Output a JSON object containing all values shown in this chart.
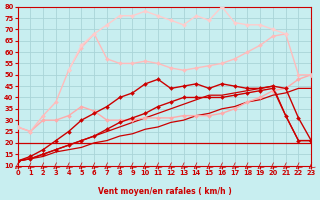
{
  "xlabel": "Vent moyen/en rafales ( km/h )",
  "bg_color": "#c8eef0",
  "grid_color": "#aad4d8",
  "xlim": [
    0,
    23
  ],
  "ylim": [
    10,
    80
  ],
  "yticks": [
    10,
    15,
    20,
    25,
    30,
    35,
    40,
    45,
    50,
    55,
    60,
    65,
    70,
    75,
    80
  ],
  "xticks": [
    0,
    1,
    2,
    3,
    4,
    5,
    6,
    7,
    8,
    9,
    10,
    11,
    12,
    13,
    14,
    15,
    16,
    17,
    18,
    19,
    20,
    21,
    22,
    23
  ],
  "series": [
    {
      "x": [
        0,
        23
      ],
      "y": [
        20,
        20
      ],
      "color": "#cc0000",
      "lw": 0.9,
      "marker": null,
      "ms": 0,
      "zorder": 2
    },
    {
      "x": [
        0,
        1,
        2,
        3,
        4,
        5,
        6,
        7,
        8,
        9,
        10,
        11,
        12,
        13,
        14,
        15,
        16,
        17,
        18,
        19,
        20,
        21,
        22,
        23
      ],
      "y": [
        12,
        13,
        14,
        16,
        17,
        18,
        20,
        21,
        23,
        24,
        26,
        27,
        29,
        30,
        32,
        33,
        35,
        36,
        38,
        39,
        41,
        42,
        44,
        44
      ],
      "color": "#cc0000",
      "lw": 0.9,
      "marker": null,
      "ms": 0,
      "zorder": 3
    },
    {
      "x": [
        0,
        1,
        2,
        3,
        4,
        5,
        6,
        7,
        8,
        9,
        10,
        11,
        12,
        13,
        14,
        15,
        16,
        17,
        18,
        19,
        20,
        21,
        22,
        23
      ],
      "y": [
        12,
        13,
        15,
        17,
        19,
        21,
        23,
        25,
        27,
        29,
        31,
        33,
        35,
        37,
        39,
        41,
        41,
        42,
        43,
        44,
        45,
        32,
        21,
        21
      ],
      "color": "#cc0000",
      "lw": 0.9,
      "marker": null,
      "ms": 0,
      "zorder": 3
    },
    {
      "x": [
        0,
        1,
        2,
        3,
        4,
        5,
        6,
        7,
        8,
        9,
        10,
        11,
        12,
        13,
        14,
        15,
        16,
        17,
        18,
        19,
        20,
        21,
        22,
        23
      ],
      "y": [
        12,
        13,
        15,
        17,
        19,
        21,
        23,
        26,
        29,
        31,
        33,
        36,
        38,
        40,
        40,
        40,
        40,
        41,
        42,
        43,
        44,
        32,
        21,
        21
      ],
      "color": "#cc0000",
      "lw": 1.0,
      "marker": "D",
      "ms": 2.0,
      "zorder": 5
    },
    {
      "x": [
        0,
        1,
        2,
        3,
        4,
        5,
        6,
        7,
        8,
        9,
        10,
        11,
        12,
        13,
        14,
        15,
        16,
        17,
        18,
        19,
        20,
        21,
        22,
        23
      ],
      "y": [
        12,
        14,
        17,
        21,
        25,
        30,
        33,
        36,
        40,
        42,
        46,
        48,
        44,
        45,
        46,
        44,
        46,
        45,
        44,
        44,
        45,
        44,
        31,
        21
      ],
      "color": "#cc0000",
      "lw": 1.0,
      "marker": "D",
      "ms": 2.0,
      "zorder": 5
    },
    {
      "x": [
        0,
        1,
        2,
        3,
        4,
        5,
        6,
        7,
        8,
        9,
        10,
        11,
        12,
        13,
        14,
        15,
        16,
        17,
        18,
        19,
        20,
        21,
        22,
        23
      ],
      "y": [
        27,
        25,
        30,
        30,
        32,
        36,
        34,
        30,
        30,
        30,
        31,
        31,
        31,
        32,
        32,
        32,
        33,
        35,
        38,
        40,
        43,
        44,
        48,
        50
      ],
      "color": "#ffaaaa",
      "lw": 1.0,
      "marker": "D",
      "ms": 2.0,
      "zorder": 3
    },
    {
      "x": [
        0,
        1,
        2,
        3,
        4,
        5,
        6,
        7,
        8,
        9,
        10,
        11,
        12,
        13,
        14,
        15,
        16,
        17,
        18,
        19,
        20,
        21,
        22,
        23
      ],
      "y": [
        27,
        25,
        32,
        38,
        52,
        62,
        68,
        57,
        55,
        55,
        56,
        55,
        53,
        52,
        53,
        54,
        55,
        57,
        60,
        63,
        67,
        68,
        50,
        50
      ],
      "color": "#ffbbbb",
      "lw": 1.0,
      "marker": "D",
      "ms": 2.0,
      "zorder": 3
    },
    {
      "x": [
        4,
        5,
        6,
        7,
        8,
        9,
        10,
        11,
        12,
        13,
        14,
        15,
        16,
        17,
        18,
        19,
        20,
        21
      ],
      "y": [
        52,
        63,
        68,
        72,
        76,
        76,
        78,
        76,
        74,
        72,
        76,
        74,
        80,
        73,
        72,
        72,
        70,
        68
      ],
      "color": "#ffcccc",
      "lw": 1.0,
      "marker": "D",
      "ms": 2.0,
      "zorder": 3
    }
  ]
}
